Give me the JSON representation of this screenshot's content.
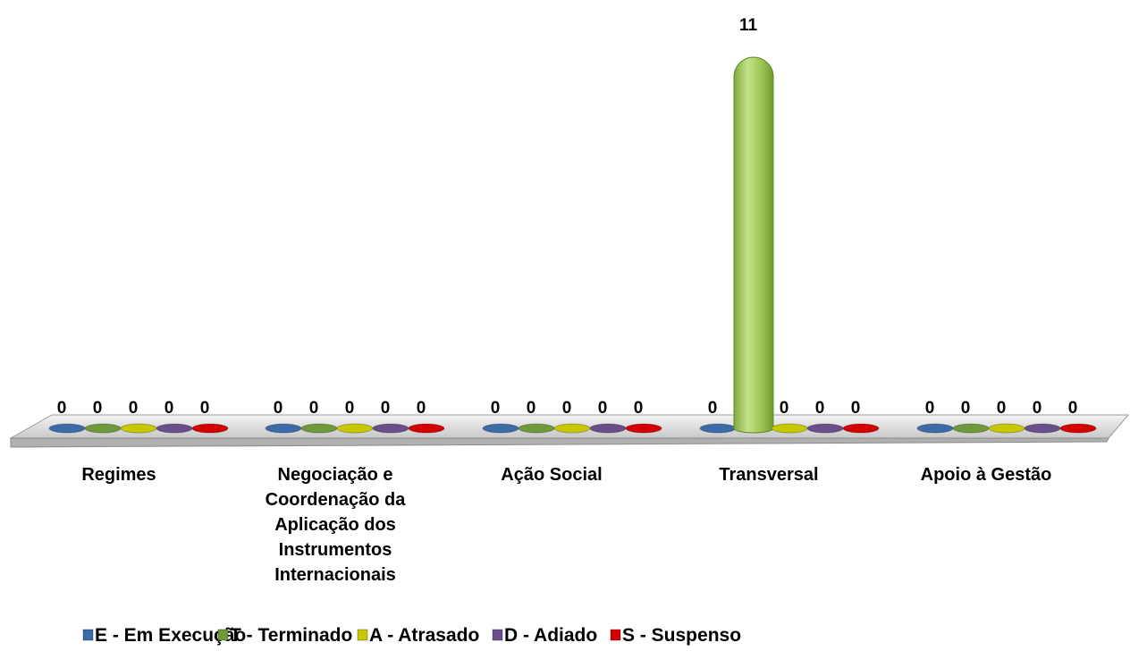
{
  "chart_data": {
    "type": "bar",
    "categories": [
      [
        "Regimes"
      ],
      [
        "Negociação e",
        "Coordenação da",
        "Aplicação dos",
        "Instrumentos",
        "Internacionais"
      ],
      [
        "Ação Social"
      ],
      [
        "Transversal"
      ],
      [
        "Apoio à Gestão"
      ]
    ],
    "series": [
      {
        "name": "E - Em Execução",
        "values": [
          0,
          0,
          0,
          0,
          0
        ],
        "color": "#3d6aa8"
      },
      {
        "name": "T - Terminado",
        "values": [
          0,
          0,
          0,
          11,
          0
        ],
        "color": "#6f9a3c"
      },
      {
        "name": "A - Atrasado",
        "values": [
          0,
          0,
          0,
          0,
          0
        ],
        "color": "#c8c800"
      },
      {
        "name": "D - Adiado",
        "values": [
          0,
          0,
          0,
          0,
          0
        ],
        "color": "#6a4e8c"
      },
      {
        "name": "S - Suspenso",
        "values": [
          0,
          0,
          0,
          0,
          0
        ],
        "color": "#d40000"
      }
    ],
    "data_labels": [
      [
        "0",
        "0",
        "0",
        "0",
        "0"
      ],
      [
        "0",
        "0",
        "0",
        "0",
        "0"
      ],
      [
        "0",
        "0",
        "0",
        "0",
        "0"
      ],
      [
        "0",
        "11",
        "0",
        "0",
        "0"
      ],
      [
        "0",
        "0",
        "0",
        "0",
        "0"
      ]
    ],
    "ylim": [
      0,
      11
    ],
    "grid": false,
    "legend_position": "bottom",
    "style": "3d-cylinder"
  }
}
